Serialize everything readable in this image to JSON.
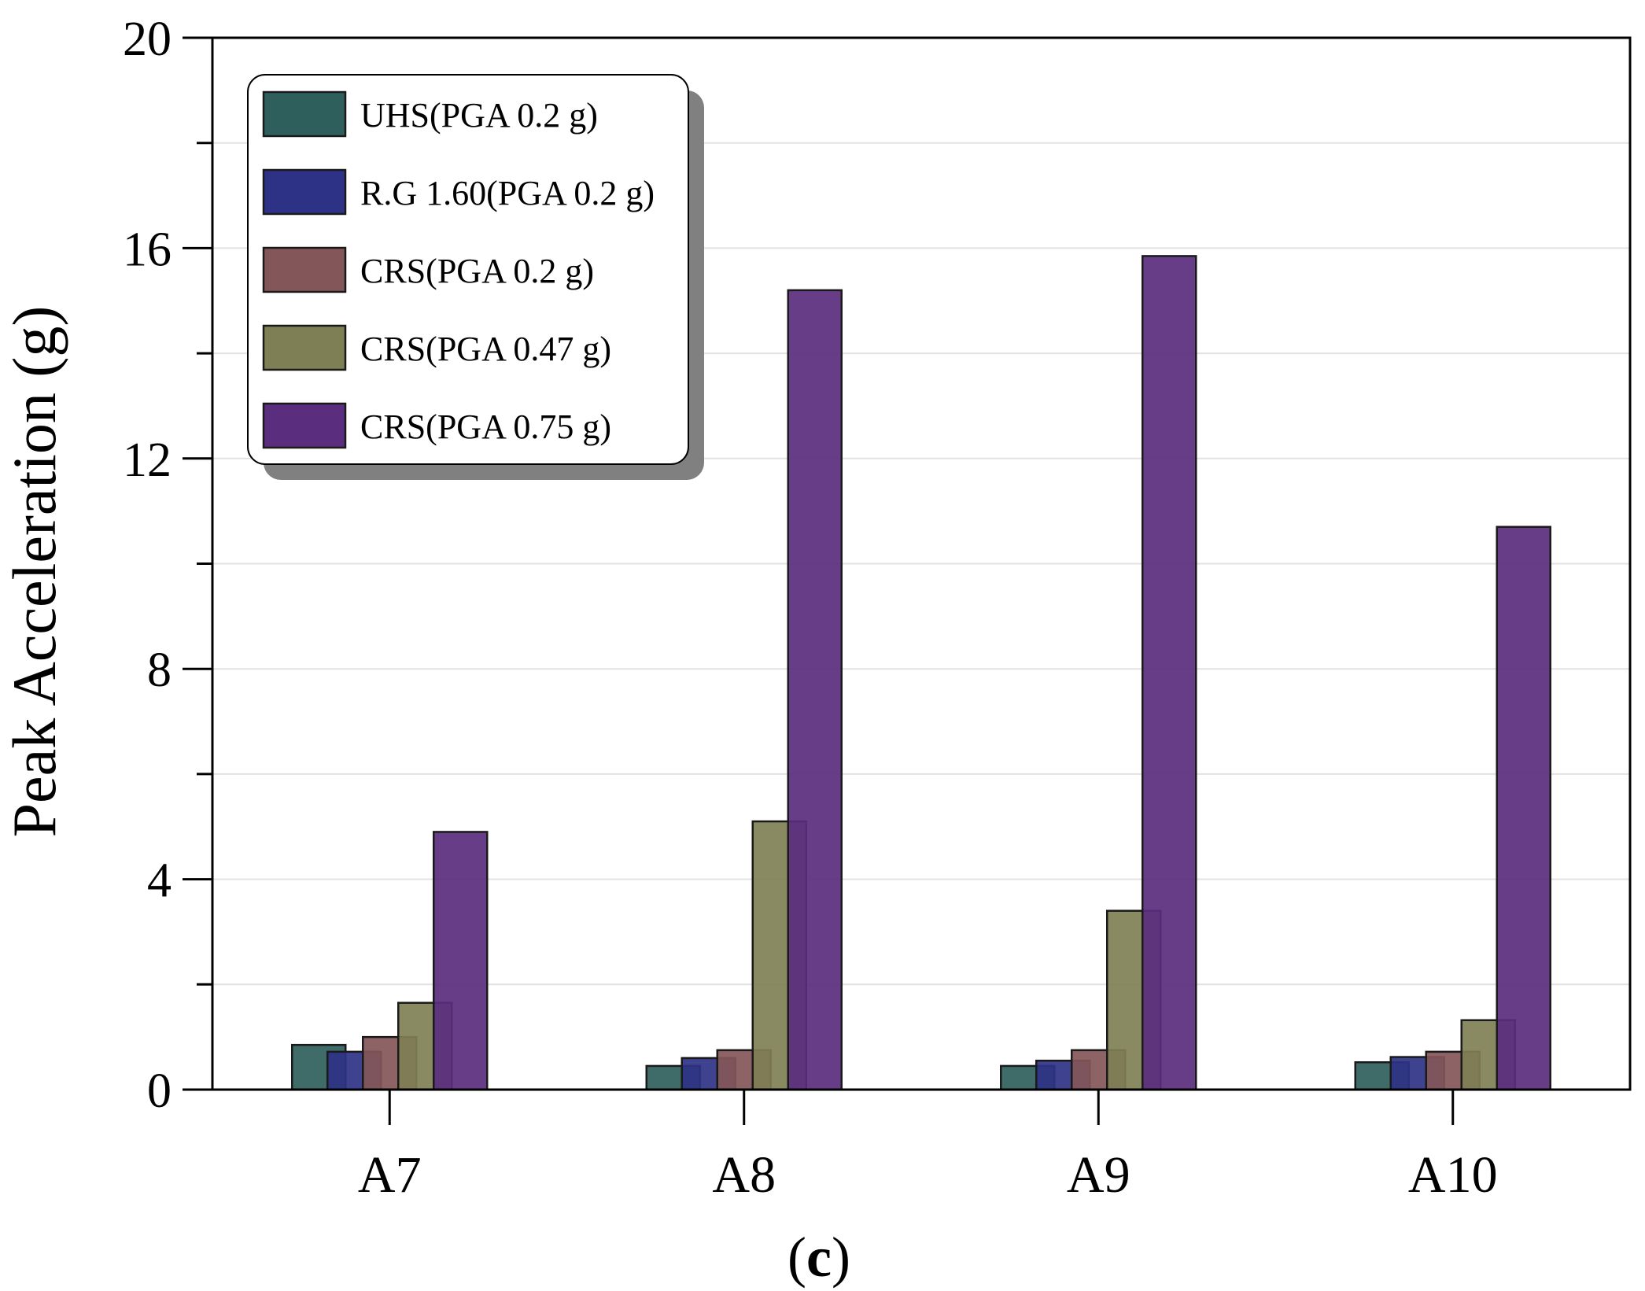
{
  "chart_data": {
    "type": "bar",
    "title": "",
    "xlabel": "",
    "ylabel": "Peak Acceleration (g)",
    "panel_label": "(c)",
    "categories": [
      "A7",
      "A8",
      "A9",
      "A10"
    ],
    "ylim": [
      0,
      20
    ],
    "yticks": [
      0,
      4,
      8,
      12,
      16,
      20
    ],
    "ytick_labels": [
      "0",
      "4",
      "8",
      "12",
      "16",
      "20"
    ],
    "grid": true,
    "legend_position": "top-left",
    "series": [
      {
        "name": "UHS(PGA 0.2 g)",
        "color": "#2f5f5c",
        "values": [
          0.85,
          0.45,
          0.45,
          0.52
        ]
      },
      {
        "name": "R.G 1.60(PGA 0.2 g)",
        "color": "#2e3286",
        "values": [
          0.72,
          0.6,
          0.55,
          0.62
        ]
      },
      {
        "name": "CRS(PGA 0.2 g)",
        "color": "#835659",
        "values": [
          1.0,
          0.75,
          0.75,
          0.72
        ]
      },
      {
        "name": "CRS(PGA 0.47 g)",
        "color": "#7f7f55",
        "values": [
          1.65,
          5.1,
          3.4,
          1.32
        ]
      },
      {
        "name": "CRS(PGA 0.75 g)",
        "color": "#5a2d7e",
        "values": [
          4.9,
          15.2,
          15.85,
          10.7
        ]
      }
    ]
  }
}
